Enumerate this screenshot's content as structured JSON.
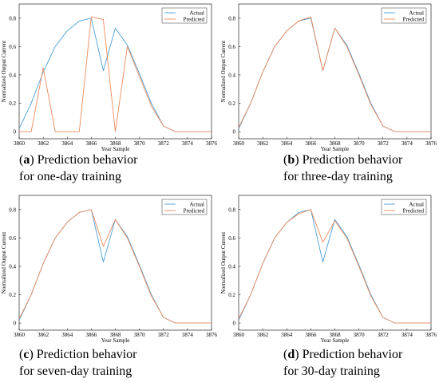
{
  "colors": {
    "actual": "#4a9fd6",
    "predicted": "#ef8a5b"
  },
  "chart_data": [
    {
      "type": "line",
      "caption_letter": "a",
      "caption_rest1": " Prediction behavior",
      "caption_line2": "for one-day training",
      "xlabel": "Year Sample",
      "ylabel": "Normalized Output Current",
      "xlim": [
        3860,
        3876
      ],
      "ylim": [
        -0.05,
        0.9
      ],
      "x_ticks": [
        "3860",
        "3862",
        "3864",
        "3866",
        "3868",
        "3870",
        "3872",
        "3874",
        "3876"
      ],
      "y_ticks": [
        "0",
        "0.2",
        "0.4",
        "0.6",
        "0.8"
      ],
      "legend_position": "top-right",
      "grid": false,
      "x": [
        3860,
        3861,
        3862,
        3863,
        3864,
        3865,
        3866,
        3867,
        3868,
        3869,
        3870,
        3871,
        3872,
        3873,
        3874,
        3875,
        3876
      ],
      "series": [
        {
          "name": "Actual",
          "values": [
            0.02,
            0.2,
            0.42,
            0.6,
            0.71,
            0.78,
            0.8,
            0.43,
            0.73,
            0.61,
            0.41,
            0.2,
            0.04,
            0.0,
            0.0,
            0.0,
            0.0
          ]
        },
        {
          "name": "Predicted",
          "values": [
            0.0,
            0.0,
            0.45,
            0.0,
            0.0,
            0.0,
            0.81,
            0.79,
            0.0,
            0.6,
            0.39,
            0.18,
            0.04,
            0.0,
            0.0,
            0.0,
            0.0
          ]
        }
      ]
    },
    {
      "type": "line",
      "caption_letter": "b",
      "caption_rest1": " Prediction behavior",
      "caption_line2": "for three-day training",
      "xlabel": "Year Sample",
      "ylabel": "Normalized Output Current",
      "xlim": [
        3860,
        3876
      ],
      "ylim": [
        -0.05,
        0.9
      ],
      "x_ticks": [
        "3860",
        "3862",
        "3864",
        "3866",
        "3868",
        "3870",
        "3872",
        "3874",
        "3876"
      ],
      "y_ticks": [
        "0",
        "0.2",
        "0.4",
        "0.6",
        "0.8"
      ],
      "legend_position": "top-right",
      "grid": false,
      "x": [
        3860,
        3861,
        3862,
        3863,
        3864,
        3865,
        3866,
        3867,
        3868,
        3869,
        3870,
        3871,
        3872,
        3873,
        3874,
        3875,
        3876
      ],
      "series": [
        {
          "name": "Actual",
          "values": [
            0.02,
            0.2,
            0.42,
            0.6,
            0.71,
            0.78,
            0.8,
            0.43,
            0.73,
            0.61,
            0.41,
            0.2,
            0.04,
            0.0,
            0.0,
            0.0,
            0.0
          ]
        },
        {
          "name": "Predicted",
          "values": [
            0.03,
            0.2,
            0.42,
            0.6,
            0.71,
            0.78,
            0.81,
            0.43,
            0.73,
            0.6,
            0.4,
            0.19,
            0.04,
            0.0,
            0.0,
            0.0,
            0.0
          ]
        }
      ]
    },
    {
      "type": "line",
      "caption_letter": "c",
      "caption_rest1": " Prediction behavior",
      "caption_line2": "for seven-day training",
      "xlabel": "Year Sample",
      "ylabel": "Normalized Output Current",
      "xlim": [
        3860,
        3876
      ],
      "ylim": [
        -0.05,
        0.9
      ],
      "x_ticks": [
        "3860",
        "3862",
        "3864",
        "3866",
        "3868",
        "3870",
        "3872",
        "3874",
        "3876"
      ],
      "y_ticks": [
        "0",
        "0.2",
        "0.4",
        "0.6",
        "0.8"
      ],
      "legend_position": "top-right",
      "grid": false,
      "x": [
        3860,
        3861,
        3862,
        3863,
        3864,
        3865,
        3866,
        3867,
        3868,
        3869,
        3870,
        3871,
        3872,
        3873,
        3874,
        3875,
        3876
      ],
      "series": [
        {
          "name": "Actual",
          "values": [
            0.02,
            0.2,
            0.42,
            0.6,
            0.71,
            0.78,
            0.8,
            0.43,
            0.73,
            0.61,
            0.41,
            0.2,
            0.04,
            0.0,
            0.0,
            0.0,
            0.0
          ]
        },
        {
          "name": "Predicted",
          "values": [
            0.03,
            0.2,
            0.42,
            0.6,
            0.71,
            0.78,
            0.8,
            0.54,
            0.73,
            0.6,
            0.4,
            0.19,
            0.04,
            0.0,
            0.0,
            0.0,
            0.0
          ]
        }
      ]
    },
    {
      "type": "line",
      "caption_letter": "d",
      "caption_rest1": " Prediction behavior",
      "caption_line2": "for 30-day training",
      "xlabel": "Year Sample",
      "ylabel": "Normalized Output Current",
      "xlim": [
        3860,
        3876
      ],
      "ylim": [
        -0.05,
        0.9
      ],
      "x_ticks": [
        "3860",
        "3862",
        "3864",
        "3866",
        "3868",
        "3870",
        "3872",
        "3874",
        "3876"
      ],
      "y_ticks": [
        "0",
        "0.2",
        "0.4",
        "0.6",
        "0.8"
      ],
      "legend_position": "top-right",
      "grid": false,
      "x": [
        3860,
        3861,
        3862,
        3863,
        3864,
        3865,
        3866,
        3867,
        3868,
        3869,
        3870,
        3871,
        3872,
        3873,
        3874,
        3875,
        3876
      ],
      "series": [
        {
          "name": "Actual",
          "values": [
            0.02,
            0.2,
            0.42,
            0.6,
            0.71,
            0.78,
            0.8,
            0.43,
            0.73,
            0.61,
            0.41,
            0.2,
            0.04,
            0.0,
            0.0,
            0.0,
            0.0
          ]
        },
        {
          "name": "Predicted",
          "values": [
            0.03,
            0.2,
            0.42,
            0.6,
            0.71,
            0.77,
            0.8,
            0.57,
            0.72,
            0.6,
            0.4,
            0.19,
            0.04,
            0.0,
            0.0,
            0.0,
            0.0
          ]
        }
      ]
    }
  ]
}
